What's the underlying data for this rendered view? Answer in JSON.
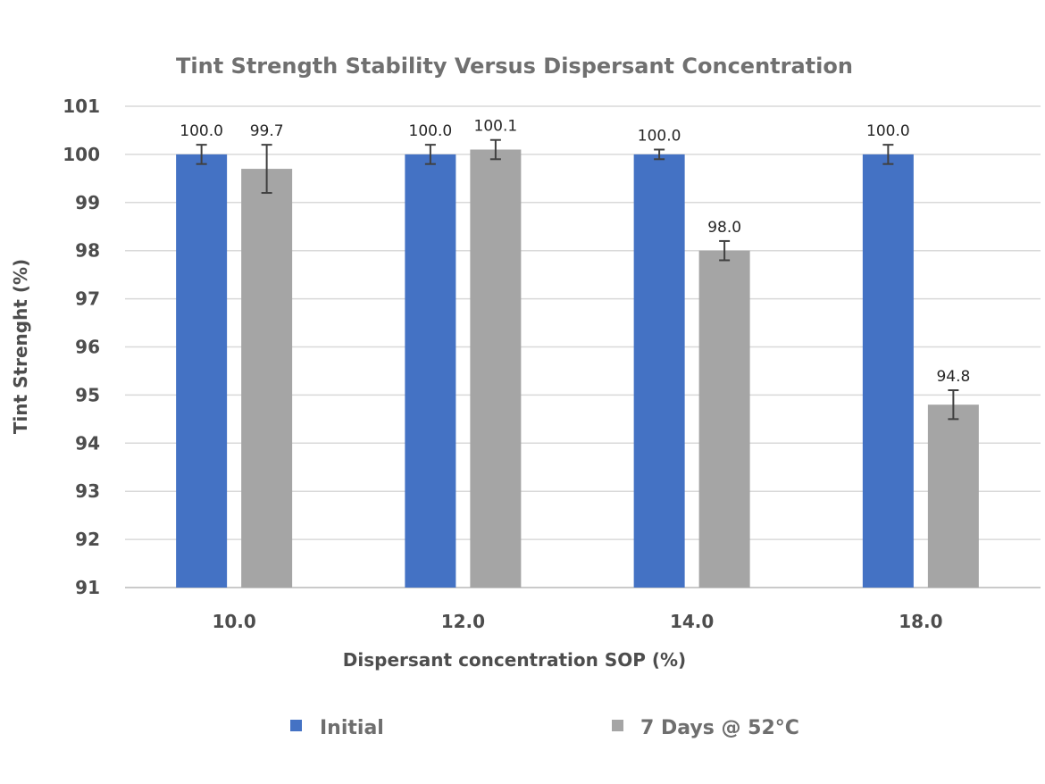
{
  "chart_data": {
    "type": "bar",
    "title": "Tint Strength Stability Versus Dispersant Concentration",
    "xlabel": "Dispersant concentration SOP (%)",
    "ylabel": "Tint Strenght (%)",
    "ylim": [
      91,
      101
    ],
    "yticks": [
      "91",
      "92",
      "93",
      "94",
      "95",
      "96",
      "97",
      "98",
      "99",
      "100",
      "101"
    ],
    "grid": true,
    "legend_position": "bottom",
    "categories": [
      "10.0",
      "12.0",
      "14.0",
      "18.0"
    ],
    "series": [
      {
        "name": "Initial",
        "color": "#4472C4",
        "values": [
          100.0,
          100.0,
          100.0,
          100.0
        ],
        "labels": [
          "100.0",
          "100.0",
          "100.0",
          "100.0"
        ],
        "error": [
          0.2,
          0.2,
          0.1,
          0.2
        ]
      },
      {
        "name": "7 Days @ 52°C",
        "color": "#A5A5A5",
        "values": [
          99.7,
          100.1,
          98.0,
          94.8
        ],
        "labels": [
          "99.7",
          "100.1",
          "98.0",
          "94.8"
        ],
        "error": [
          0.5,
          0.2,
          0.2,
          0.3
        ]
      }
    ]
  }
}
